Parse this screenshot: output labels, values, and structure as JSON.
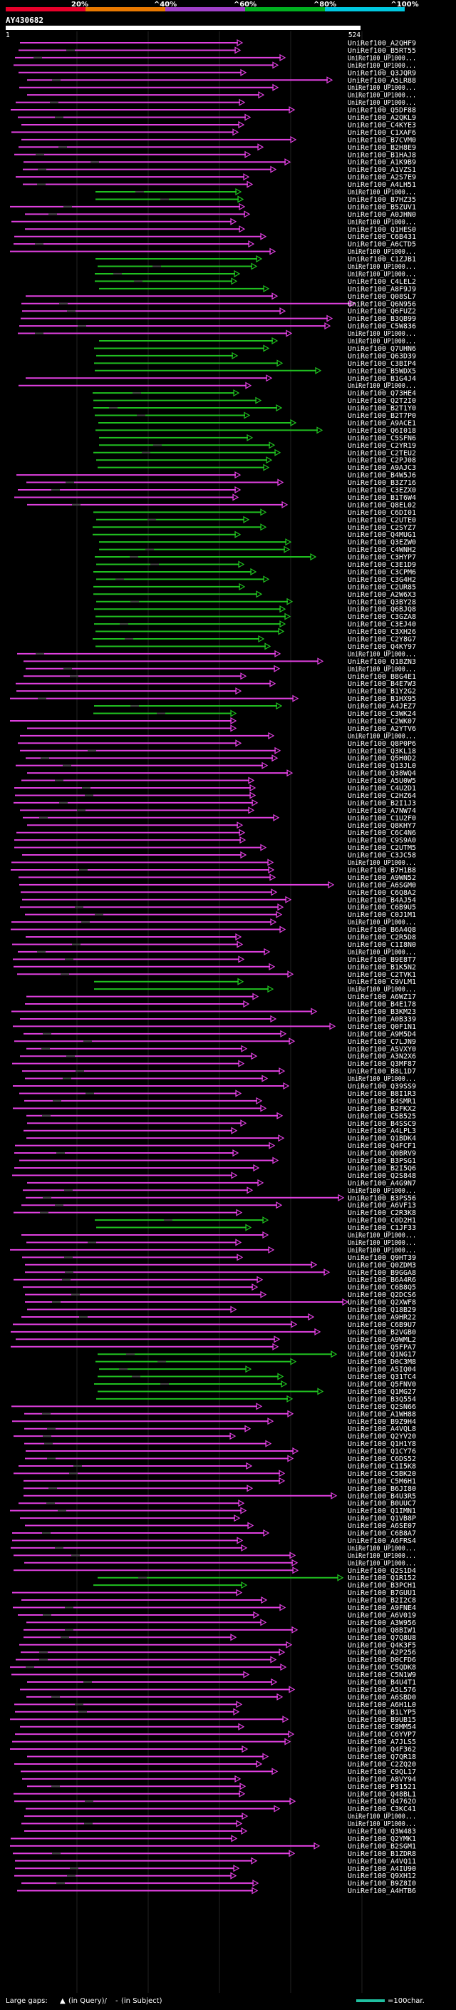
{
  "query": {
    "id": "AY430682",
    "start_label": "1",
    "end_label": "524",
    "length": 524
  },
  "identity_scale": {
    "ticks": [
      "20%",
      "^40%",
      "^60%",
      "^80%",
      "^100%"
    ],
    "colors": [
      "#e8002a",
      "#e87800",
      "#a040c8",
      "#00b020",
      "#00c8e0"
    ]
  },
  "colors": {
    "background": "#000000",
    "magenta_hit": "#e040e0",
    "green_hit": "#20c020",
    "gap": "#ffffff",
    "grid": "#1a1a1a"
  },
  "hits": [
    "UniRef100_A2QHF9",
    "UniRef100_B5RT55",
    "UniRef100_UP1000...",
    "UniRef100_UP1000...",
    "UniRef100_Q3JQR9",
    "UniRef100_A5LR88",
    "UniRef100_UP1000...",
    "UniRef100_UP1000...",
    "UniRef100_UP1000...",
    "UniRef100_Q5DF88",
    "UniRef100_A2QKL9",
    "UniRef100_C4KYE3",
    "UniRef100_C1XAF6",
    "UniRef100_B7CVM0",
    "UniRef100_B2H8E9",
    "UniRef100_B1HAJ8",
    "UniRef100_A1K9B9",
    "UniRef100_A1VZS1",
    "UniRef100_A2S7E9",
    "UniRef100_A4LH51",
    "UniRef100_UP1000...",
    "UniRef100_B7HZ35",
    "UniRef100_B5ZUV1",
    "UniRef100_A0JHN0",
    "UniRef100_UP1000...",
    "UniRef100_Q1HES0",
    "UniRef100_C6B431",
    "UniRef100_A6CTD5",
    "UniRef100_UP1000...",
    "UniRef100_C1ZJB1",
    "UniRef100_UP1000...",
    "UniRef100_UP1000...",
    "UniRef100_C4LEL2",
    "UniRef100_A8F9J9",
    "UniRef100_Q08SL7",
    "UniRef100_Q6N956",
    "UniRef100_Q6FUZ2",
    "UniRef100_B3QB99",
    "UniRef100_C5W836",
    "UniRef100_UP1000...",
    "UniRef100_UP1000...",
    "UniRef100_Q7UHN6",
    "UniRef100_Q63D39",
    "UniRef100_C3BIP4",
    "UniRef100_B5WDX5",
    "UniRef100_B1G4J4",
    "UniRef100_UP1000...",
    "UniRef100_Q73HE4",
    "UniRef100_Q2T2I0",
    "UniRef100_B2T1Y0",
    "UniRef100_B2T7P0",
    "UniRef100_A9ACE1",
    "UniRef100_Q6I018",
    "UniRef100_C5SFN6",
    "UniRef100_C2YR19",
    "UniRef100_C2TEU2",
    "UniRef100_C2PJ08",
    "UniRef100_A9AJC3",
    "UniRef100_B4W5J6",
    "UniRef100_B3Z716",
    "UniRef100_C3EZX0",
    "UniRef100_B1T6W4",
    "UniRef100_Q8EL02",
    "UniRef100_C6DI01",
    "UniRef100_C2UTE0",
    "UniRef100_C2SYZ7",
    "UniRef100_Q4MUG1",
    "UniRef100_Q3EZW0",
    "UniRef100_C4WNH2",
    "UniRef100_C3HYP7",
    "UniRef100_C3E1D9",
    "UniRef100_C3CPM6",
    "UniRef100_C3G4H2",
    "UniRef100_C2UR85",
    "UniRef100_A2W6X3",
    "UniRef100_Q3BY28",
    "UniRef100_Q6BJQ8",
    "UniRef100_C3GZA8",
    "UniRef100_C3EJ40",
    "UniRef100_C3XH26",
    "UniRef100_C2Y8G7",
    "UniRef100_Q4KY97",
    "UniRef100_UP1000...",
    "UniRef100_Q1BZN3",
    "UniRef100_UP1000...",
    "UniRef100_B8G4E1",
    "UniRef100_B4E7W3",
    "UniRef100_B1Y2G2",
    "UniRef100_B1HX95",
    "UniRef100_A4JEZ7",
    "UniRef100_C3WK24",
    "UniRef100_C2WK07",
    "UniRef100_A2YTV6",
    "UniRef100_UP1000...",
    "UniRef100_Q8P0P6",
    "UniRef100_Q3KL18",
    "UniRef100_Q5H0D2",
    "UniRef100_Q13JL0",
    "UniRef100_Q38WQ4",
    "UniRef100_A5U0W5",
    "UniRef100_C4U2D1",
    "UniRef100_C2HZ64",
    "UniRef100_B2I1J3",
    "UniRef100_A7NW74",
    "UniRef100_C1U2F0",
    "UniRef100_Q8KHY7",
    "UniRef100_C6C4N6",
    "UniRef100_C9S9A0",
    "UniRef100_C2UTM5",
    "UniRef100_C3JC58",
    "UniRef100_UP1000...",
    "UniRef100_B7H1B8",
    "UniRef100_A9WN52",
    "UniRef100_A6SGM0",
    "UniRef100_C6Q8A2",
    "UniRef100_B4AJ54",
    "UniRef100_C6B9U5",
    "UniRef100_C0J1M1",
    "UniRef100_UP1000...",
    "UniRef100_B6A4Q8",
    "UniRef100_C2R5D8",
    "UniRef100_C1I8N0",
    "UniRef100_UP1000...",
    "UniRef100_B9E8T7",
    "UniRef100_B1K5N2",
    "UniRef100_C2TVK1",
    "UniRef100_C9VLM1",
    "UniRef100_UP1000...",
    "UniRef100_A6WZ17",
    "UniRef100_B4E178",
    "UniRef100_B3KM23",
    "UniRef100_A0B339",
    "UniRef100_Q0F1N1",
    "UniRef100_A9M5D4",
    "UniRef100_C7LJN9",
    "UniRef100_A5VXY0",
    "UniRef100_A3N2X6",
    "UniRef100_Q3MF87",
    "UniRef100_B8L1D7",
    "UniRef100_UP1000...",
    "UniRef100_Q39SS9",
    "UniRef100_B8I1R3",
    "UniRef100_B4SMR1",
    "UniRef100_B2FKX2",
    "UniRef100_C5B525",
    "UniRef100_B4SSC9",
    "UniRef100_A4LPL3",
    "UniRef100_Q1BDK4",
    "UniRef100_Q4FCF1",
    "UniRef100_Q0BRV9",
    "UniRef100_B3PSG1",
    "UniRef100_B2I5Q6",
    "UniRef100_Q2S848",
    "UniRef100_A4G9N7",
    "UniRef100_UP1000...",
    "UniRef100_B3PS56",
    "UniRef100_A6VF13",
    "UniRef100_C2R3K8",
    "UniRef100_C0D2H1",
    "UniRef100_C1JF33",
    "UniRef100_UP1000...",
    "UniRef100_UP1000...",
    "UniRef100_UP1000...",
    "UniRef100_Q9HT39",
    "UniRef100_Q0ZDM3",
    "UniRef100_B9GGA8",
    "UniRef100_B6A4R6",
    "UniRef100_C6B8Q5",
    "UniRef100_Q2DCS6",
    "UniRef100_Q2XWF8",
    "UniRef100_Q18B29",
    "UniRef100_A9HR22",
    "UniRef100_C6B9U7",
    "UniRef100_B2VGB0",
    "UniRef100_A9WML2",
    "UniRef100_Q5FPA7",
    "UniRef100_Q1NG17",
    "UniRef100_D0C3M8",
    "UniRef100_A5IQ04",
    "UniRef100_Q31TC4",
    "UniRef100_Q5FNV0",
    "UniRef100_Q1MG27",
    "UniRef100_B3Q554",
    "UniRef100_Q2SN66",
    "UniRef100_A1WH88",
    "UniRef100_B9Z9H4",
    "UniRef100_A4VQL8",
    "UniRef100_Q2YV20",
    "UniRef100_Q1H1Y8",
    "UniRef100_Q1CY76",
    "UniRef100_C6DS52",
    "UniRef100_C1I5K8",
    "UniRef100_C5BK20",
    "UniRef100_C5M6H1",
    "UniRef100_B6JI80",
    "UniRef100_B4U3R5",
    "UniRef100_B0UUC7",
    "UniRef100_Q1IMN1",
    "UniRef100_Q1VB8P",
    "UniRef100_A6SE07",
    "UniRef100_C6B8A7",
    "UniRef100_A6FRS4",
    "UniRef100_UP1000...",
    "UniRef100_UP1000...",
    "UniRef100_UP1000...",
    "UniRef100_Q2S1D4",
    "UniRef100_Q1R152",
    "UniRef100_B3PCH1",
    "UniRef100_B7GUU1",
    "UniRef100_B2I2C8",
    "UniRef100_A9FNE4",
    "UniRef100_A6V019",
    "UniRef100_A3W956",
    "UniRef100_Q8BIW1",
    "UniRef100_Q7Q8U8",
    "UniRef100_Q4K3F5",
    "UniRef100_A2P256",
    "UniRef100_D0CFD6",
    "UniRef100_C5QDK8",
    "UniRef100_C5N1W9",
    "UniRef100_B4U4T1",
    "UniRef100_A5L576",
    "UniRef100_A6SBD0",
    "UniRef100_A6H1L0",
    "UniRef100_B1LYP5",
    "UniRef100_B9UB15",
    "UniRef100_C8MM54",
    "UniRef100_C6YVP7",
    "UniRef100_A7JLS5",
    "UniRef100_Q4F362",
    "UniRef100_Q7QR18",
    "UniRef100_C2ZQ20",
    "UniRef100_C9QL17",
    "UniRef100_A8VY94",
    "UniRef100_P31521",
    "UniRef100_Q48BL1",
    "UniRef100_Q4762O",
    "UniRef100_C3KC41",
    "UniRef100_UP1000...",
    "UniRef100_UP1000...",
    "UniRef100_Q3W483",
    "UniRef100_Q2YMK1",
    "UniRef100_B2SGM1",
    "UniRef100_B1ZDR8",
    "UniRef100_A4VQ11",
    "UniRef100_A4IU90",
    "UniRef100_Q9XH12",
    "UniRef100_B9Z8I0",
    "UniRef100_A4HTB6"
  ],
  "footer": {
    "large_gaps_label": "Large gaps:",
    "in_query_label": "(in Query)/",
    "in_subject_label": "(in Subject)",
    "scale_label": "=100char."
  }
}
